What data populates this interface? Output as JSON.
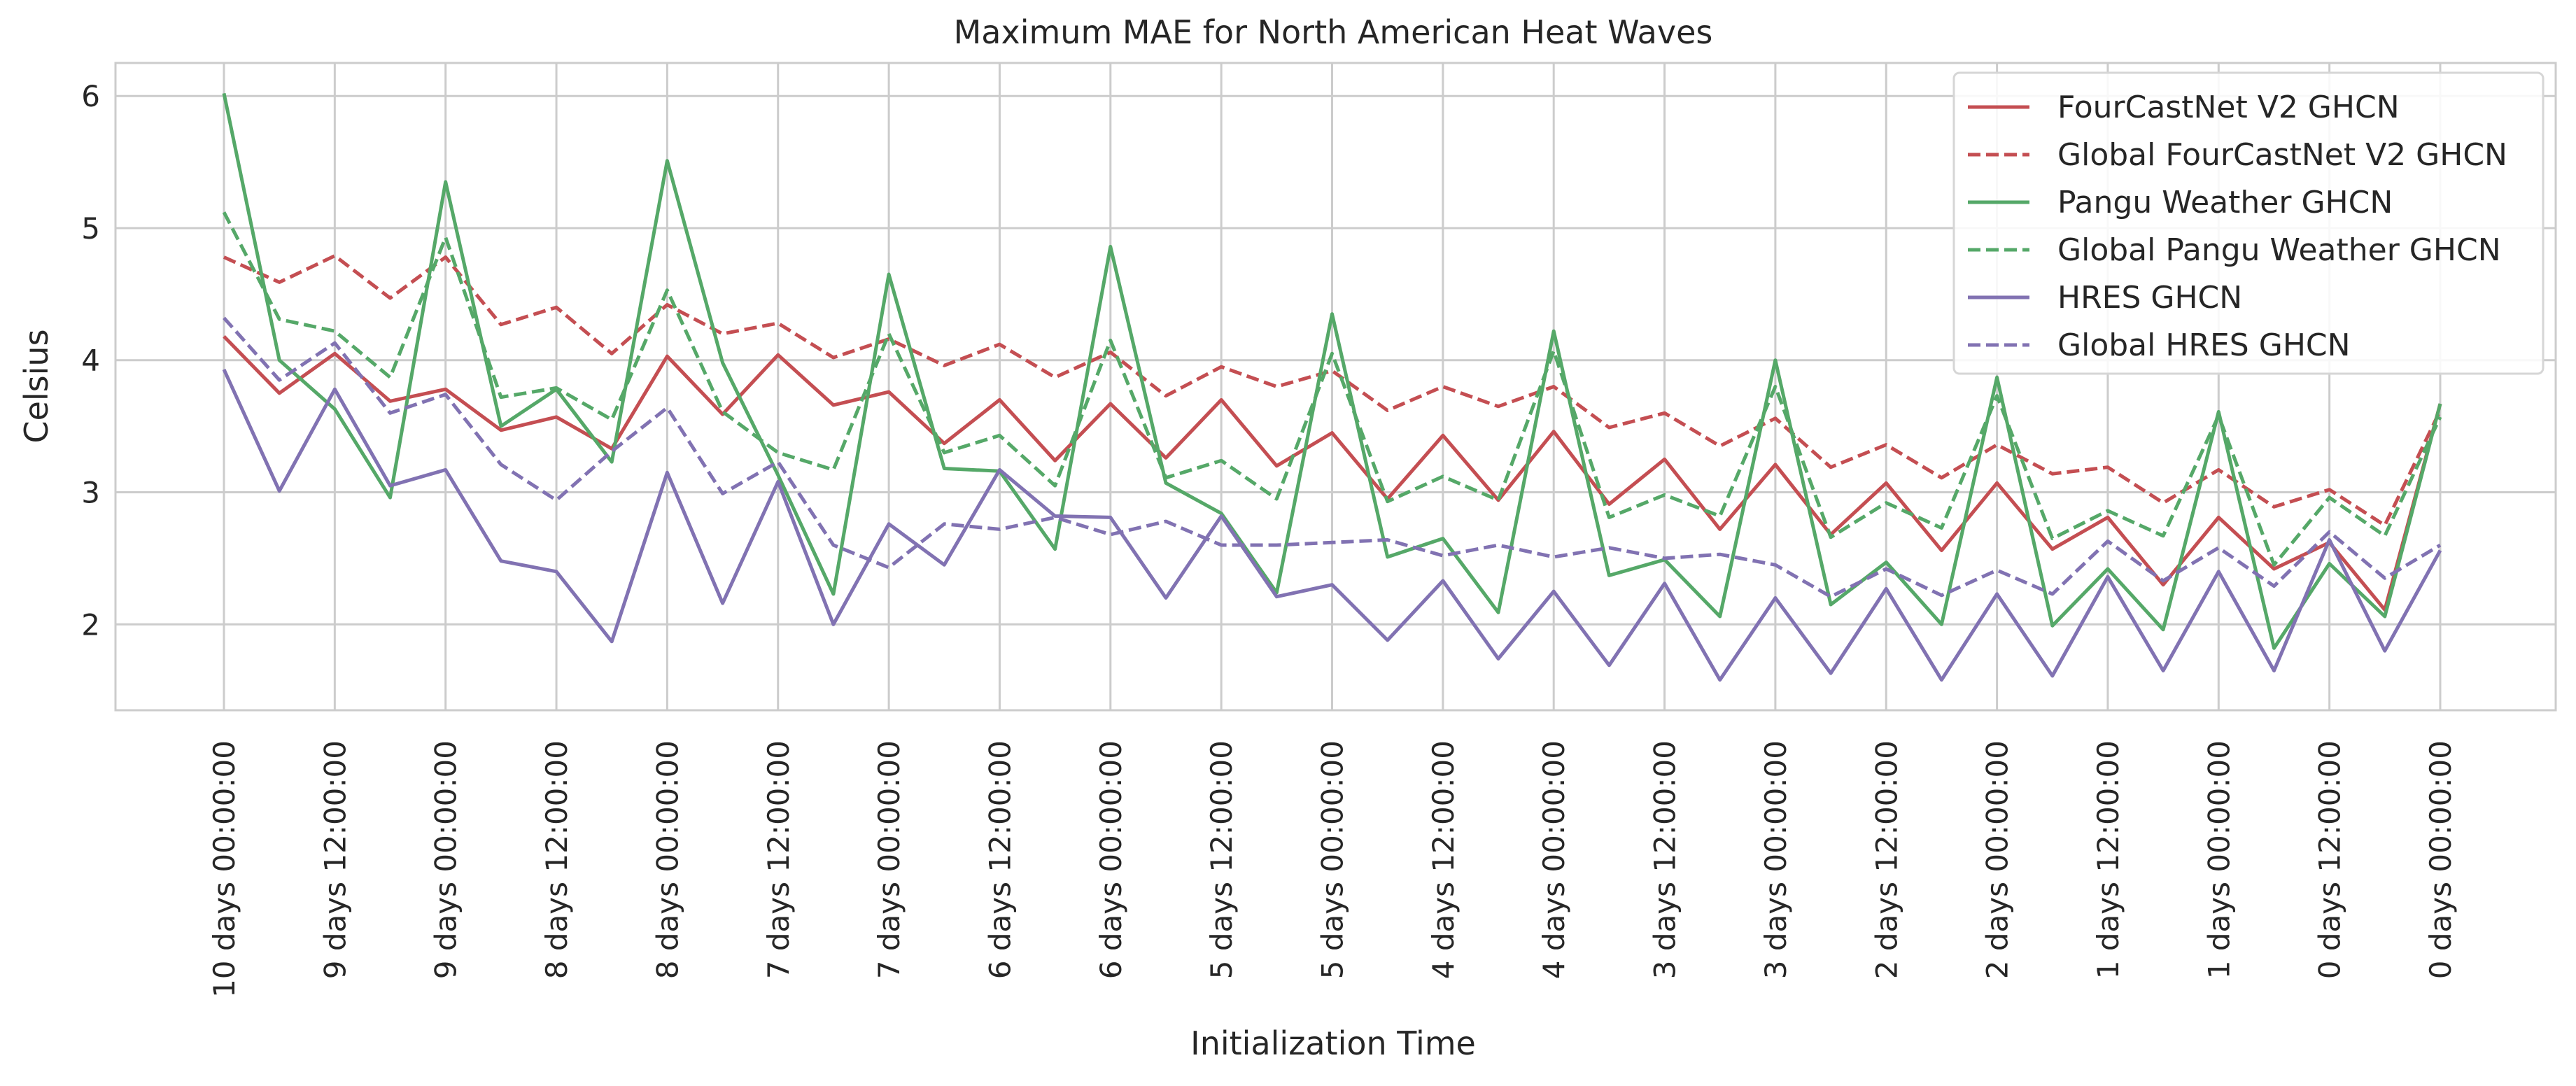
{
  "chart_data": {
    "type": "line",
    "title": "Maximum MAE for North American Heat Waves",
    "xlabel": "Initialization Time",
    "ylabel": "Celsius",
    "ylim": [
      1.35,
      6.25
    ],
    "yticks": [
      2,
      3,
      4,
      5,
      6
    ],
    "grid": true,
    "legend_position": "top-right",
    "x_tick_labels": [
      "10 days 00:00:00",
      "9 days 12:00:00",
      "9 days 00:00:00",
      "8 days 12:00:00",
      "8 days 00:00:00",
      "7 days 12:00:00",
      "7 days 00:00:00",
      "6 days 12:00:00",
      "6 days 00:00:00",
      "5 days 12:00:00",
      "5 days 00:00:00",
      "4 days 12:00:00",
      "4 days 00:00:00",
      "3 days 12:00:00",
      "3 days 00:00:00",
      "2 days 12:00:00",
      "2 days 00:00:00",
      "1 days 12:00:00",
      "1 days 00:00:00",
      "0 days 12:00:00",
      "0 days 00:00:00"
    ],
    "x_hours_before": [
      240,
      234,
      228,
      222,
      216,
      210,
      204,
      198,
      192,
      186,
      180,
      174,
      168,
      162,
      156,
      150,
      144,
      138,
      132,
      126,
      120,
      114,
      108,
      102,
      96,
      90,
      84,
      78,
      72,
      66,
      60,
      54,
      48,
      42,
      36,
      30,
      24,
      18,
      12,
      6,
      0
    ],
    "series": [
      {
        "name": "FourCastNet V2 GHCN",
        "color": "#c44e52",
        "dash": false,
        "values": [
          4.18,
          3.75,
          4.05,
          3.69,
          3.78,
          3.47,
          3.57,
          3.33,
          4.03,
          3.59,
          4.04,
          3.66,
          3.76,
          3.37,
          3.7,
          3.24,
          3.67,
          3.26,
          3.7,
          3.2,
          3.45,
          2.95,
          3.43,
          2.94,
          3.46,
          2.91,
          3.25,
          2.72,
          3.21,
          2.68,
          3.07,
          2.56,
          3.07,
          2.57,
          2.81,
          2.3,
          2.81,
          2.42,
          2.62,
          2.11,
          3.67
        ]
      },
      {
        "name": "Global FourCastNet V2 GHCN",
        "color": "#c44e52",
        "dash": true,
        "values": [
          4.78,
          4.59,
          4.79,
          4.47,
          4.78,
          4.27,
          4.4,
          4.05,
          4.42,
          4.2,
          4.28,
          4.02,
          4.16,
          3.96,
          4.12,
          3.87,
          4.06,
          3.73,
          3.95,
          3.8,
          3.92,
          3.62,
          3.8,
          3.65,
          3.8,
          3.49,
          3.6,
          3.35,
          3.56,
          3.19,
          3.36,
          3.11,
          3.36,
          3.14,
          3.19,
          2.92,
          3.17,
          2.89,
          3.02,
          2.75,
          3.62
        ]
      },
      {
        "name": "Pangu Weather GHCN",
        "color": "#55a868",
        "dash": false,
        "values": [
          6.02,
          4.0,
          3.63,
          2.96,
          5.35,
          3.5,
          3.78,
          3.23,
          5.51,
          3.98,
          3.13,
          2.23,
          4.65,
          3.18,
          3.16,
          2.57,
          4.86,
          3.07,
          2.84,
          2.24,
          4.35,
          2.51,
          2.65,
          2.09,
          4.22,
          2.37,
          2.49,
          2.06,
          4.0,
          2.15,
          2.47,
          2.0,
          3.87,
          1.99,
          2.42,
          1.96,
          3.61,
          1.82,
          2.46,
          2.06,
          3.67
        ]
      },
      {
        "name": "Global Pangu Weather GHCN",
        "color": "#55a868",
        "dash": true,
        "values": [
          5.12,
          4.31,
          4.22,
          3.87,
          4.93,
          3.72,
          3.79,
          3.55,
          4.53,
          3.61,
          3.3,
          3.17,
          4.2,
          3.3,
          3.43,
          3.05,
          4.15,
          3.11,
          3.24,
          2.95,
          4.05,
          2.93,
          3.12,
          2.94,
          4.07,
          2.81,
          2.98,
          2.82,
          3.8,
          2.66,
          2.92,
          2.73,
          3.73,
          2.65,
          2.86,
          2.67,
          3.58,
          2.45,
          2.96,
          2.67,
          3.57
        ]
      },
      {
        "name": "HRES GHCN",
        "color": "#8172b2",
        "dash": false,
        "values": [
          3.93,
          3.01,
          3.78,
          3.05,
          3.17,
          2.48,
          2.4,
          1.87,
          3.15,
          2.16,
          3.08,
          2.0,
          2.76,
          2.45,
          3.17,
          2.82,
          2.81,
          2.2,
          2.82,
          2.21,
          2.3,
          1.88,
          2.33,
          1.74,
          2.25,
          1.69,
          2.31,
          1.58,
          2.2,
          1.63,
          2.27,
          1.58,
          2.23,
          1.61,
          2.36,
          1.65,
          2.4,
          1.65,
          2.64,
          1.8,
          2.56
        ]
      },
      {
        "name": "Global HRES GHCN",
        "color": "#8172b2",
        "dash": true,
        "values": [
          4.32,
          3.85,
          4.13,
          3.6,
          3.74,
          3.21,
          2.94,
          3.31,
          3.64,
          2.99,
          3.23,
          2.6,
          2.43,
          2.76,
          2.72,
          2.81,
          2.68,
          2.78,
          2.6,
          2.6,
          2.62,
          2.64,
          2.52,
          2.6,
          2.51,
          2.58,
          2.5,
          2.53,
          2.45,
          2.21,
          2.42,
          2.22,
          2.41,
          2.23,
          2.63,
          2.33,
          2.58,
          2.29,
          2.7,
          2.35,
          2.6
        ]
      }
    ]
  }
}
